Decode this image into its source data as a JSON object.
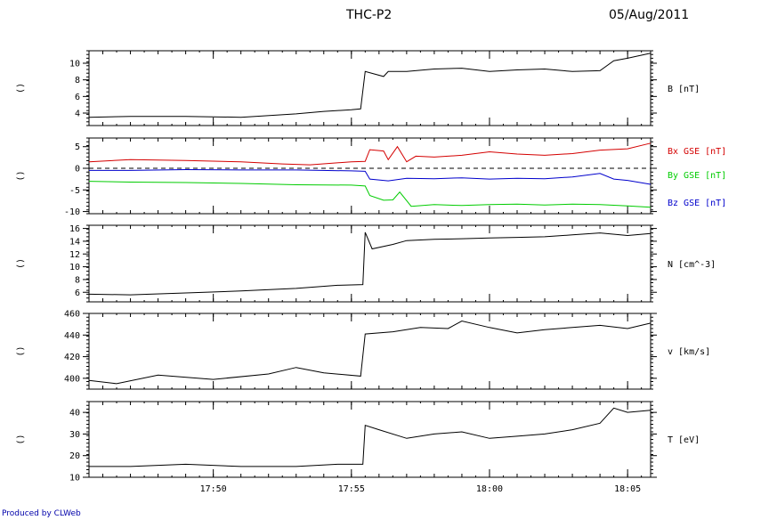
{
  "header": {
    "title": "THC-P2",
    "date": "05/Aug/2011"
  },
  "footer": {
    "credit": "Produced by CLWeb"
  },
  "colors": {
    "red": "#d40000",
    "green": "#00cc00",
    "blue": "#0000cc",
    "black": "#000000"
  },
  "chart_data": [
    {
      "type": "line",
      "xlabel": "",
      "ylabel": "()",
      "x_ticks": [
        "17:50",
        "17:55",
        "18:00",
        "18:05"
      ],
      "ylim": [
        2.5,
        11.5
      ],
      "yticks": [
        4,
        6,
        8,
        10
      ],
      "series": [
        {
          "name": "B [nT]",
          "color": "#000000",
          "x": [
            "17:45:30",
            "17:47:00",
            "17:49:00",
            "17:51:00",
            "17:53:00",
            "17:54:00",
            "17:55:00",
            "17:55:20",
            "17:55:30",
            "17:56:10",
            "17:56:20",
            "17:57:00",
            "17:58:00",
            "17:59:00",
            "18:00:00",
            "18:01:00",
            "18:02:00",
            "18:03:00",
            "18:04:00",
            "18:04:30",
            "18:05:00",
            "18:05:50"
          ],
          "y": [
            3.5,
            3.6,
            3.6,
            3.5,
            3.9,
            4.2,
            4.4,
            4.5,
            9.0,
            8.4,
            9.0,
            9.0,
            9.3,
            9.4,
            9.0,
            9.2,
            9.3,
            9.0,
            9.1,
            10.3,
            10.6,
            11.2
          ]
        }
      ]
    },
    {
      "type": "line",
      "xlabel": "",
      "ylabel": "()",
      "x_ticks": [
        "17:50",
        "17:55",
        "18:00",
        "18:05"
      ],
      "ylim": [
        -10.5,
        7
      ],
      "yticks": [
        5,
        0,
        -5,
        -10
      ],
      "zero_line": "dashed",
      "series": [
        {
          "name": "Bx GSE [nT]",
          "color": "#d40000",
          "x": [
            "17:45:30",
            "17:47:00",
            "17:49:00",
            "17:51:00",
            "17:52:30",
            "17:53:30",
            "17:55:00",
            "17:55:30",
            "17:55:40",
            "17:56:10",
            "17:56:20",
            "17:56:40",
            "17:57:00",
            "17:57:20",
            "17:58:00",
            "17:59:00",
            "18:00:00",
            "18:01:00",
            "18:02:00",
            "18:03:00",
            "18:04:00",
            "18:05:00",
            "18:05:50"
          ],
          "y": [
            1.5,
            2.0,
            1.8,
            1.5,
            1.0,
            0.8,
            1.5,
            1.6,
            4.3,
            4.0,
            2.0,
            5.0,
            1.5,
            2.8,
            2.6,
            3.0,
            3.8,
            3.3,
            3.0,
            3.4,
            4.2,
            4.5,
            5.8
          ]
        },
        {
          "name": "By GSE [nT]",
          "color": "#00cc00",
          "x": [
            "17:45:30",
            "17:47:00",
            "17:49:00",
            "17:51:00",
            "17:53:00",
            "17:55:00",
            "17:55:30",
            "17:55:40",
            "17:56:10",
            "17:56:30",
            "17:56:45",
            "17:57:10",
            "17:58:00",
            "17:59:00",
            "18:00:00",
            "18:01:00",
            "18:02:00",
            "18:03:00",
            "18:04:00",
            "18:05:00",
            "18:05:50"
          ],
          "y": [
            -3.0,
            -3.2,
            -3.3,
            -3.5,
            -3.8,
            -3.9,
            -4.1,
            -6.3,
            -7.4,
            -7.3,
            -5.5,
            -8.8,
            -8.4,
            -8.6,
            -8.4,
            -8.3,
            -8.5,
            -8.3,
            -8.4,
            -8.7,
            -9.0
          ]
        },
        {
          "name": "Bz GSE [nT]",
          "color": "#0000cc",
          "x": [
            "17:45:30",
            "17:47:00",
            "17:49:00",
            "17:51:00",
            "17:53:00",
            "17:55:00",
            "17:55:30",
            "17:55:40",
            "17:56:20",
            "17:57:00",
            "17:58:00",
            "17:59:00",
            "18:00:00",
            "18:01:00",
            "18:02:00",
            "18:03:00",
            "18:04:00",
            "18:04:30",
            "18:05:00",
            "18:05:50"
          ],
          "y": [
            -0.5,
            -0.5,
            -0.3,
            -0.4,
            -0.4,
            -0.6,
            -0.7,
            -2.5,
            -2.9,
            -2.3,
            -2.4,
            -2.2,
            -2.5,
            -2.3,
            -2.4,
            -2.0,
            -1.2,
            -2.5,
            -2.8,
            -3.7
          ]
        }
      ]
    },
    {
      "type": "line",
      "xlabel": "",
      "ylabel": "()",
      "x_ticks": [
        "17:50",
        "17:55",
        "18:00",
        "18:05"
      ],
      "ylim": [
        4.5,
        16.5
      ],
      "yticks": [
        6,
        8,
        10,
        12,
        14,
        16
      ],
      "series": [
        {
          "name": "N [cm^-3]",
          "color": "#000000",
          "x": [
            "17:45:30",
            "17:47:00",
            "17:49:00",
            "17:51:00",
            "17:53:00",
            "17:54:30",
            "17:55:25",
            "17:55:30",
            "17:55:45",
            "17:56:30",
            "17:57:00",
            "17:58:00",
            "17:59:00",
            "18:00:00",
            "18:01:00",
            "18:02:00",
            "18:03:00",
            "18:04:00",
            "18:05:00",
            "18:05:50"
          ],
          "y": [
            5.7,
            5.6,
            5.9,
            6.2,
            6.6,
            7.1,
            7.2,
            15.4,
            12.8,
            13.5,
            14.1,
            14.3,
            14.4,
            14.5,
            14.6,
            14.7,
            15.0,
            15.3,
            14.9,
            15.2
          ]
        }
      ]
    },
    {
      "type": "line",
      "xlabel": "",
      "ylabel": "()",
      "x_ticks": [
        "17:50",
        "17:55",
        "18:00",
        "18:05"
      ],
      "ylim": [
        390,
        460
      ],
      "yticks": [
        400,
        420,
        440,
        460
      ],
      "series": [
        {
          "name": "v [km/s]",
          "color": "#000000",
          "x": [
            "17:45:30",
            "17:46:30",
            "17:48:00",
            "17:50:00",
            "17:52:00",
            "17:53:00",
            "17:54:00",
            "17:55:20",
            "17:55:30",
            "17:56:30",
            "17:57:30",
            "17:58:30",
            "17:59:00",
            "18:00:00",
            "18:01:00",
            "18:02:00",
            "18:03:00",
            "18:04:00",
            "18:05:00",
            "18:05:50"
          ],
          "y": [
            398,
            395,
            403,
            399,
            404,
            410,
            405,
            402,
            441,
            443,
            447,
            446,
            453,
            447,
            442,
            445,
            447,
            449,
            446,
            451
          ]
        }
      ]
    },
    {
      "type": "line",
      "xlabel": "",
      "ylabel": "()",
      "x_ticks": [
        "17:50",
        "17:55",
        "18:00",
        "18:05"
      ],
      "ylim": [
        10,
        45
      ],
      "yticks": [
        10,
        20,
        30,
        40
      ],
      "series": [
        {
          "name": "T [eV]",
          "color": "#000000",
          "x": [
            "17:45:30",
            "17:47:00",
            "17:49:00",
            "17:51:00",
            "17:53:00",
            "17:54:30",
            "17:55:25",
            "17:55:30",
            "17:56:00",
            "17:57:00",
            "17:58:00",
            "17:59:00",
            "18:00:00",
            "18:01:00",
            "18:02:00",
            "18:03:00",
            "18:04:00",
            "18:04:30",
            "18:05:00",
            "18:05:50"
          ],
          "y": [
            15,
            15,
            16,
            15,
            15,
            16,
            16,
            34,
            32,
            28,
            30,
            31,
            28,
            29,
            30,
            32,
            35,
            42,
            40,
            41
          ]
        }
      ]
    }
  ]
}
